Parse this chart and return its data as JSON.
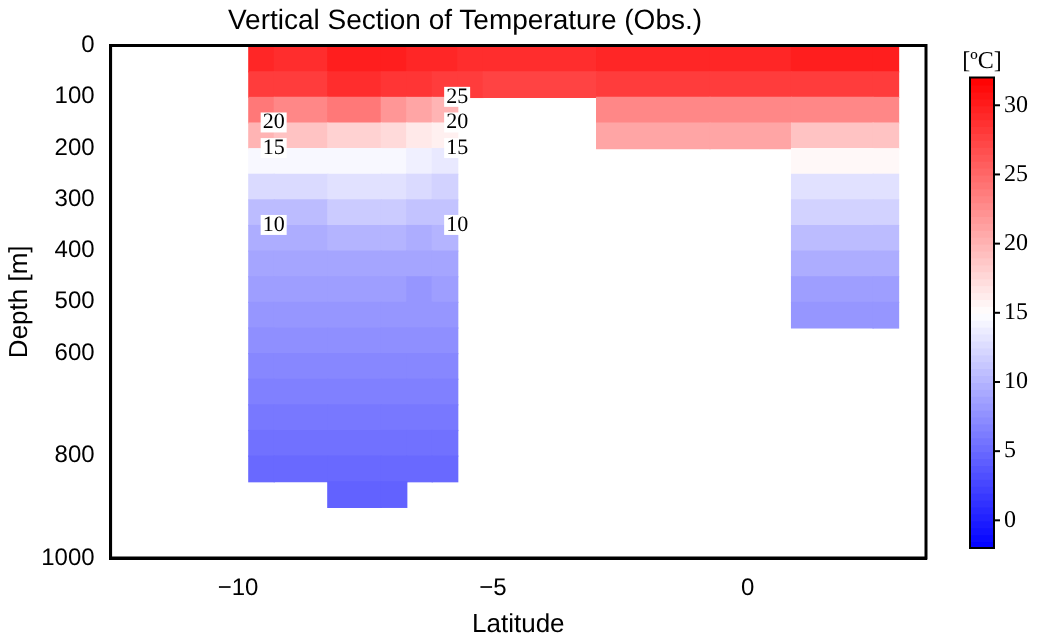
{
  "chart_data": {
    "type": "heatmap",
    "title": "Vertical Section of Temperature (Obs.)",
    "xlabel": "Latitude",
    "ylabel": "Depth [m]",
    "clabel": "[ºC]",
    "x": [
      -9.55,
      -9.05,
      -7.45,
      -6.95,
      -6.45,
      -5.95,
      -5.45,
      -4.95,
      -1.0,
      -0.5,
      2.2,
      2.7
    ],
    "y": [
      25,
      75,
      125,
      175,
      225,
      275,
      325,
      375,
      425,
      475,
      525,
      575,
      625,
      675,
      725,
      775,
      825,
      875
    ],
    "cells": [
      [
        29.5,
        29,
        30,
        30,
        29.5,
        29.5,
        29,
        29,
        29.5,
        29.5,
        30,
        30
      ],
      [
        28,
        28,
        29,
        28.5,
        28.5,
        28,
        28,
        27.5,
        28,
        28,
        28,
        28
      ],
      [
        24,
        23,
        24,
        22,
        21,
        20,
        null,
        null,
        23,
        23,
        23,
        23
      ],
      [
        20,
        19,
        18,
        17.5,
        16.5,
        16,
        null,
        null,
        21,
        21,
        19,
        19
      ],
      [
        14.5,
        14.5,
        14.5,
        14.5,
        14,
        13.5,
        null,
        null,
        null,
        null,
        15.5,
        15.5
      ],
      [
        12.5,
        12.5,
        13,
        13,
        12.5,
        12,
        null,
        null,
        null,
        null,
        13,
        13
      ],
      [
        10.5,
        10.5,
        11.5,
        11.5,
        11,
        11,
        null,
        null,
        null,
        null,
        12,
        12
      ],
      [
        9.5,
        9.5,
        10,
        10,
        9.5,
        10,
        null,
        null,
        null,
        null,
        10.5,
        10.5
      ],
      [
        9,
        9,
        9,
        9,
        9,
        9,
        null,
        null,
        null,
        null,
        9.5,
        9.5
      ],
      [
        8.5,
        8.5,
        8.5,
        8.5,
        8,
        8.5,
        null,
        null,
        null,
        null,
        8.5,
        8.5
      ],
      [
        8,
        8,
        8,
        8,
        8,
        8,
        null,
        null,
        null,
        null,
        8,
        8
      ],
      [
        7.5,
        7.5,
        7.5,
        7.5,
        7.5,
        7.5,
        null,
        null,
        null,
        null,
        null,
        null
      ],
      [
        7,
        7,
        7,
        7,
        7,
        7,
        null,
        null,
        null,
        null,
        null,
        null
      ],
      [
        6.5,
        6.5,
        6.5,
        6.5,
        6.5,
        6.5,
        null,
        null,
        null,
        null,
        null,
        null
      ],
      [
        6,
        6,
        6,
        6,
        6,
        6,
        null,
        null,
        null,
        null,
        null,
        null
      ],
      [
        5.5,
        5.5,
        5.5,
        5.5,
        5.5,
        5.5,
        null,
        null,
        null,
        null,
        null,
        null
      ],
      [
        5,
        5,
        5,
        5,
        5,
        5,
        null,
        null,
        null,
        null,
        null,
        null
      ],
      [
        null,
        null,
        4.5,
        4.5,
        null,
        null,
        null,
        null,
        null,
        null,
        null,
        null
      ]
    ],
    "xlim": [
      -12.5,
      3.5
    ],
    "xticks": [
      -10,
      -5,
      0
    ],
    "ylim": [
      1000,
      0
    ],
    "yticks": [
      0,
      100,
      200,
      300,
      400,
      500,
      600,
      800,
      1000
    ],
    "clim": [
      -2,
      32
    ],
    "cticks": [
      0,
      5,
      10,
      15,
      20,
      25,
      30
    ],
    "annotations": [
      "25",
      "20",
      "15",
      "10",
      "20",
      "15",
      "10"
    ]
  }
}
